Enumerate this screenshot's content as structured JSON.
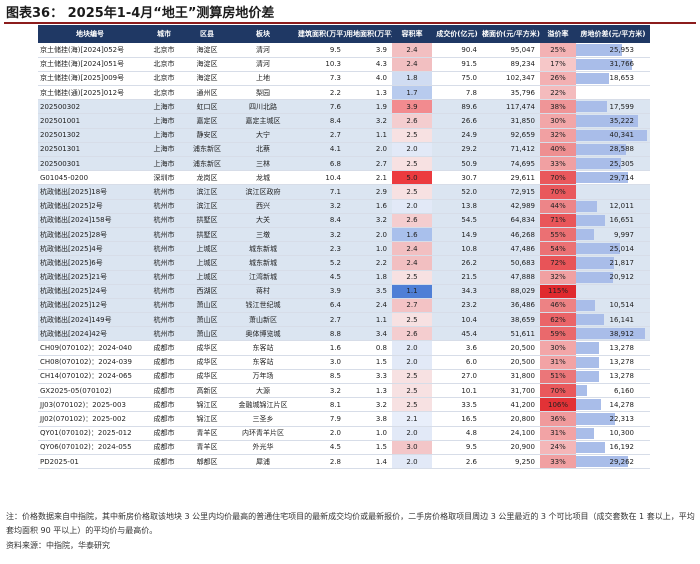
{
  "title": "图表36： 2025年1-4月“地王”测算房地价差",
  "columns": [
    "地块编号",
    "城市",
    "区县",
    "板块",
    "建筑面积(万平方米)",
    "用地面积(万平方米)",
    "容积率",
    "成交价(亿元)",
    "楼面价(元/平方米)",
    "溢价率",
    "房地价差(元/平方米)"
  ],
  "rows": [
    {
      "id": "京土储挂(海)[2024]052号",
      "city": "北京市",
      "district": "海淀区",
      "block": "清河",
      "area": "9.5",
      "land": "3.9",
      "far": "2.4",
      "price": "90.4",
      "floor_price": "95,047",
      "premium": "25%",
      "diff": "25,953",
      "diff_value": 25953,
      "far_color": "#f2bfc1",
      "premium_color": "#f3b2b4",
      "shaded": false
    },
    {
      "id": "京土储挂(海)[2024]051号",
      "city": "北京市",
      "district": "海淀区",
      "block": "清河",
      "area": "10.3",
      "land": "4.3",
      "far": "2.4",
      "price": "91.5",
      "floor_price": "89,234",
      "premium": "17%",
      "diff": "31,766",
      "diff_value": 31766,
      "far_color": "#f2bfc1",
      "premium_color": "#f6c7c8",
      "shaded": false
    },
    {
      "id": "京土储挂(海)[2025]009号",
      "city": "北京市",
      "district": "海淀区",
      "block": "上地",
      "area": "7.3",
      "land": "4.0",
      "far": "1.8",
      "price": "75.0",
      "floor_price": "102,347",
      "premium": "26%",
      "diff": "18,653",
      "diff_value": 18653,
      "far_color": "#d0dcf2",
      "premium_color": "#f3b0b2",
      "shaded": false
    },
    {
      "id": "京土储挂(通)[2025]012号",
      "city": "北京市",
      "district": "通州区",
      "block": "梨园",
      "area": "2.2",
      "land": "1.3",
      "far": "1.7",
      "price": "7.8",
      "floor_price": "35,796",
      "premium": "22%",
      "diff": "",
      "diff_value": 0,
      "far_color": "#b8cbee",
      "premium_color": "#f4bbbd",
      "shaded": false
    },
    {
      "id": "202500302",
      "city": "上海市",
      "district": "虹口区",
      "block": "四川北路",
      "area": "7.6",
      "land": "1.9",
      "far": "3.9",
      "price": "89.6",
      "floor_price": "117,474",
      "premium": "38%",
      "diff": "17,599",
      "diff_value": 17599,
      "far_color": "#f28b8f",
      "premium_color": "#ef9597",
      "shaded": true
    },
    {
      "id": "202501001",
      "city": "上海市",
      "district": "嘉定区",
      "block": "嘉定主城区",
      "area": "8.4",
      "land": "3.2",
      "far": "2.6",
      "price": "26.6",
      "floor_price": "31,850",
      "premium": "30%",
      "diff": "35,222",
      "diff_value": 35222,
      "far_color": "#f4cdcf",
      "premium_color": "#f2a6a8",
      "shaded": true
    },
    {
      "id": "202501302",
      "city": "上海市",
      "district": "静安区",
      "block": "大宁",
      "area": "2.7",
      "land": "1.1",
      "far": "2.5",
      "price": "24.9",
      "floor_price": "92,659",
      "premium": "32%",
      "diff": "40,341",
      "diff_value": 40341,
      "far_color": "#f7e1e2",
      "premium_color": "#f1a0a2",
      "shaded": true
    },
    {
      "id": "202501301",
      "city": "上海市",
      "district": "浦东新区",
      "block": "北蔡",
      "area": "4.1",
      "land": "2.0",
      "far": "2.0",
      "price": "29.2",
      "floor_price": "71,412",
      "premium": "40%",
      "diff": "28,588",
      "diff_value": 28588,
      "far_color": "#e2e9f7",
      "premium_color": "#ee8f91",
      "shaded": true
    },
    {
      "id": "202500301",
      "city": "上海市",
      "district": "浦东新区",
      "block": "三林",
      "area": "6.8",
      "land": "2.7",
      "far": "2.5",
      "price": "50.9",
      "floor_price": "74,695",
      "premium": "33%",
      "diff": "25,305",
      "diff_value": 25305,
      "far_color": "#f7e1e2",
      "premium_color": "#f1a0a2",
      "shaded": true
    },
    {
      "id": "G01045-0200",
      "city": "深圳市",
      "district": "龙岗区",
      "block": "龙城",
      "area": "10.4",
      "land": "2.1",
      "far": "5.0",
      "price": "30.7",
      "floor_price": "29,611",
      "premium": "70%",
      "diff": "29,714",
      "diff_value": 29714,
      "far_color": "#ec3b3f",
      "premium_color": "#e9585c",
      "shaded": false
    },
    {
      "id": "杭政储出[2025]18号",
      "city": "杭州市",
      "district": "滨江区",
      "block": "滨江区政府",
      "area": "7.1",
      "land": "2.9",
      "far": "2.5",
      "price": "52.0",
      "floor_price": "72,915",
      "premium": "70%",
      "diff": "",
      "diff_value": 0,
      "far_color": "#f7e1e2",
      "premium_color": "#e9585c",
      "shaded": true
    },
    {
      "id": "杭政储出[2025]2号",
      "city": "杭州市",
      "district": "滨江区",
      "block": "西兴",
      "area": "3.2",
      "land": "1.6",
      "far": "2.0",
      "price": "13.8",
      "floor_price": "42,989",
      "premium": "44%",
      "diff": "12,011",
      "diff_value": 12011,
      "far_color": "#e2e9f7",
      "premium_color": "#ed8588",
      "shaded": true
    },
    {
      "id": "杭政储出[2024]158号",
      "city": "杭州市",
      "district": "拱墅区",
      "block": "大关",
      "area": "8.4",
      "land": "3.2",
      "far": "2.6",
      "price": "54.5",
      "floor_price": "64,834",
      "premium": "71%",
      "diff": "16,651",
      "diff_value": 16651,
      "far_color": "#f4cdcf",
      "premium_color": "#e9565a",
      "shaded": true
    },
    {
      "id": "杭政储出[2025]28号",
      "city": "杭州市",
      "district": "拱墅区",
      "block": "三墩",
      "area": "3.2",
      "land": "2.0",
      "far": "1.6",
      "price": "14.9",
      "floor_price": "46,268",
      "premium": "55%",
      "diff": "9,997",
      "diff_value": 9997,
      "far_color": "#a9c0ec",
      "premium_color": "#eb7073",
      "shaded": true
    },
    {
      "id": "杭政储出[2025]4号",
      "city": "杭州市",
      "district": "上城区",
      "block": "城东新城",
      "area": "2.3",
      "land": "1.0",
      "far": "2.4",
      "price": "10.8",
      "floor_price": "47,486",
      "premium": "54%",
      "diff": "25,014",
      "diff_value": 25014,
      "far_color": "#f2bfc1",
      "premium_color": "#eb7174",
      "shaded": true
    },
    {
      "id": "杭政储出[2025]6号",
      "city": "杭州市",
      "district": "上城区",
      "block": "城东新城",
      "area": "5.2",
      "land": "2.2",
      "far": "2.4",
      "price": "26.2",
      "floor_price": "50,683",
      "premium": "72%",
      "diff": "21,817",
      "diff_value": 21817,
      "far_color": "#f2bfc1",
      "premium_color": "#e85458",
      "shaded": true
    },
    {
      "id": "杭政储出[2025]21号",
      "city": "杭州市",
      "district": "上城区",
      "block": "江湾新城",
      "area": "4.5",
      "land": "1.8",
      "far": "2.5",
      "price": "21.5",
      "floor_price": "47,888",
      "premium": "32%",
      "diff": "20,912",
      "diff_value": 20912,
      "far_color": "#f7e1e2",
      "premium_color": "#f1a0a2",
      "shaded": true
    },
    {
      "id": "杭政储出[2025]24号",
      "city": "杭州市",
      "district": "西湖区",
      "block": "蒋村",
      "area": "3.9",
      "land": "3.5",
      "far": "1.1",
      "price": "34.3",
      "floor_price": "88,029",
      "premium": "115%",
      "diff": "",
      "diff_value": 0,
      "far_color": "#4f7fd6",
      "premium_color": "#e02a2e",
      "shaded": true
    },
    {
      "id": "杭政储出[2025]12号",
      "city": "杭州市",
      "district": "萧山区",
      "block": "钱江世纪城",
      "area": "6.4",
      "land": "2.4",
      "far": "2.7",
      "price": "23.2",
      "floor_price": "36,486",
      "premium": "46%",
      "diff": "10,514",
      "diff_value": 10514,
      "far_color": "#f3c3c5",
      "premium_color": "#ed8284",
      "shaded": true
    },
    {
      "id": "杭政储出[2024]149号",
      "city": "杭州市",
      "district": "萧山区",
      "block": "萧山新区",
      "area": "2.7",
      "land": "1.1",
      "far": "2.5",
      "price": "10.4",
      "floor_price": "38,659",
      "premium": "62%",
      "diff": "16,141",
      "diff_value": 16141,
      "far_color": "#f7e1e2",
      "premium_color": "#ea6468",
      "shaded": true
    },
    {
      "id": "杭政储出[2024]42号",
      "city": "杭州市",
      "district": "萧山区",
      "block": "奥体博览城",
      "area": "8.8",
      "land": "3.4",
      "far": "2.6",
      "price": "45.4",
      "floor_price": "51,611",
      "premium": "59%",
      "diff": "38,912",
      "diff_value": 38912,
      "far_color": "#f4cdcf",
      "premium_color": "#ea696c",
      "shaded": true
    },
    {
      "id": "CH09(070102)：2024-040",
      "city": "成都市",
      "district": "成华区",
      "block": "东客站",
      "area": "1.6",
      "land": "0.8",
      "far": "2.0",
      "price": "3.6",
      "floor_price": "20,500",
      "premium": "30%",
      "diff": "13,278",
      "diff_value": 13278,
      "far_color": "#e2e9f7",
      "premium_color": "#f2a6a8",
      "shaded": false
    },
    {
      "id": "CH08(070102)：2024-039",
      "city": "成都市",
      "district": "成华区",
      "block": "东客站",
      "area": "3.0",
      "land": "1.5",
      "far": "2.0",
      "price": "6.0",
      "floor_price": "20,500",
      "premium": "31%",
      "diff": "13,278",
      "diff_value": 13278,
      "far_color": "#e2e9f7",
      "premium_color": "#f2a3a5",
      "shaded": false
    },
    {
      "id": "CH14(070102)：2024-065",
      "city": "成都市",
      "district": "成华区",
      "block": "万年场",
      "area": "8.5",
      "land": "3.3",
      "far": "2.5",
      "price": "27.0",
      "floor_price": "31,800",
      "premium": "51%",
      "diff": "13,278",
      "diff_value": 13278,
      "far_color": "#f7e1e2",
      "premium_color": "#eb7679",
      "shaded": false
    },
    {
      "id": "GX2025-05(070102)",
      "city": "成都市",
      "district": "高新区",
      "block": "大源",
      "area": "3.2",
      "land": "1.3",
      "far": "2.5",
      "price": "10.1",
      "floor_price": "31,700",
      "premium": "70%",
      "diff": "6,160",
      "diff_value": 6160,
      "far_color": "#f7e1e2",
      "premium_color": "#e9585c",
      "shaded": false
    },
    {
      "id": "JJ03(070102)：2025-003",
      "city": "成都市",
      "district": "锦江区",
      "block": "金融城锦江片区",
      "area": "8.1",
      "land": "3.2",
      "far": "2.5",
      "price": "33.5",
      "floor_price": "41,200",
      "premium": "106%",
      "diff": "14,278",
      "diff_value": 14278,
      "far_color": "#f7e1e2",
      "premium_color": "#e23236",
      "shaded": false
    },
    {
      "id": "JJ02(070102)：2025-002",
      "city": "成都市",
      "district": "锦江区",
      "block": "三圣乡",
      "area": "7.9",
      "land": "3.8",
      "far": "2.1",
      "price": "16.5",
      "floor_price": "20,800",
      "premium": "36%",
      "diff": "22,313",
      "diff_value": 22313,
      "far_color": "#e8eefa",
      "premium_color": "#f09a9c",
      "shaded": false
    },
    {
      "id": "QY01(070102)：2025-012",
      "city": "成都市",
      "district": "青羊区",
      "block": "内环青羊片区",
      "area": "2.0",
      "land": "1.0",
      "far": "2.0",
      "price": "4.8",
      "floor_price": "24,100",
      "premium": "31%",
      "diff": "10,300",
      "diff_value": 10300,
      "far_color": "#e2e9f7",
      "premium_color": "#f2a3a5",
      "shaded": false
    },
    {
      "id": "QY06(070102)：2024-055",
      "city": "成都市",
      "district": "青羊区",
      "block": "外光华",
      "area": "4.5",
      "land": "1.5",
      "far": "3.0",
      "price": "9.5",
      "floor_price": "20,900",
      "premium": "24%",
      "diff": "16,192",
      "diff_value": 16192,
      "far_color": "#f3c6c8",
      "premium_color": "#f4b6b8",
      "shaded": false
    },
    {
      "id": "PD2025-01",
      "city": "成都市",
      "district": "郫都区",
      "block": "犀浦",
      "area": "2.8",
      "land": "1.4",
      "far": "2.0",
      "price": "2.6",
      "floor_price": "9,250",
      "premium": "33%",
      "diff": "29,262",
      "diff_value": 29262,
      "far_color": "#e2e9f7",
      "premium_color": "#f1a0a2",
      "shaded": false
    }
  ],
  "diff_max": 42000,
  "note": "注：价格数据来自中指院，其中新房价格取该地块 3 公里内均价最高的普通住宅项目的最新成交均价或最新报价，二手房价格取项目周边 3 公里最近的 3 个可比项目（成交套数在 1 套以上，平均套均面积 90 平以上）的平均价与最高价。",
  "source": "资料来源：中指院，华泰研究"
}
